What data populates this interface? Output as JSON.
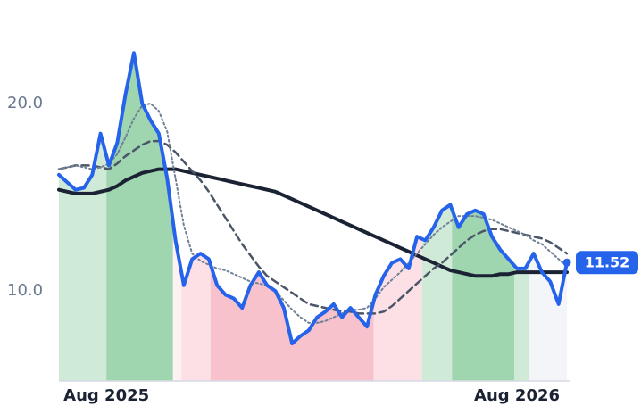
{
  "chart_data": {
    "type": "line",
    "x": [
      0,
      1,
      2,
      3,
      4,
      5,
      6,
      7,
      8,
      9,
      10,
      11,
      12,
      13,
      14,
      15,
      16,
      17,
      18,
      19,
      20,
      21,
      22,
      23,
      24,
      25,
      26,
      27,
      28,
      29,
      30,
      31,
      32,
      33,
      34,
      35,
      36,
      37,
      38,
      39,
      40,
      41,
      42,
      43,
      44,
      45,
      46,
      47,
      48,
      49,
      50,
      51,
      52,
      53,
      54,
      55,
      56,
      57,
      58,
      59,
      60,
      61
    ],
    "xlim": [
      0,
      61
    ],
    "xticks": [
      {
        "value": 5.7,
        "label": "Aug 2025"
      },
      {
        "value": 55,
        "label": "Aug 2026"
      }
    ],
    "ylim": [
      5.2,
      23.6
    ],
    "yticks": [
      {
        "value": 10,
        "label": "10.0"
      },
      {
        "value": 20,
        "label": "20.0"
      }
    ],
    "grid": false,
    "series": [
      {
        "color": "#1a2233",
        "style": "solid",
        "width": 4,
        "values": [
          15.4,
          15.3,
          15.2,
          15.2,
          15.2,
          15.3,
          15.4,
          15.6,
          15.9,
          16.1,
          16.3,
          16.4,
          16.5,
          16.5,
          16.5,
          16.4,
          16.3,
          16.2,
          16.1,
          16.0,
          15.9,
          15.8,
          15.7,
          15.6,
          15.5,
          15.4,
          15.3,
          15.1,
          14.9,
          14.7,
          14.5,
          14.3,
          14.1,
          13.9,
          13.7,
          13.5,
          13.3,
          13.1,
          12.9,
          12.7,
          12.5,
          12.3,
          12.1,
          11.9,
          11.7,
          11.5,
          11.3,
          11.1,
          11.0,
          10.9,
          10.8,
          10.8,
          10.8,
          10.9,
          10.9,
          11.0,
          11.0,
          11.0,
          11.0,
          11.0,
          11.0,
          11.0
        ]
      },
      {
        "color": "#4a5568",
        "style": "dashed",
        "width": 2.5,
        "values": [
          16.5,
          16.6,
          16.7,
          16.7,
          16.7,
          16.6,
          16.5,
          16.8,
          17.2,
          17.5,
          17.8,
          18.0,
          18.0,
          17.8,
          17.4,
          16.9,
          16.4,
          15.9,
          15.3,
          14.6,
          13.9,
          13.2,
          12.5,
          11.9,
          11.3,
          10.8,
          10.5,
          10.2,
          9.9,
          9.6,
          9.3,
          9.2,
          9.1,
          9.0,
          8.9,
          8.9,
          8.8,
          8.8,
          8.8,
          8.9,
          9.2,
          9.6,
          10.0,
          10.4,
          10.8,
          11.2,
          11.5,
          11.9,
          12.3,
          12.7,
          13.0,
          13.2,
          13.3,
          13.3,
          13.2,
          13.1,
          13.0,
          12.9,
          12.8,
          12.6,
          12.3,
          12.0
        ]
      },
      {
        "color": "#718096",
        "style": "dotted",
        "width": 2,
        "values": [
          16.5,
          16.6,
          16.7,
          16.6,
          16.5,
          16.6,
          16.8,
          17.3,
          18.2,
          19.2,
          19.9,
          20.0,
          19.6,
          18.5,
          16.0,
          13.5,
          12.0,
          11.6,
          11.4,
          11.2,
          11.1,
          10.9,
          10.7,
          10.5,
          10.4,
          10.3,
          10.0,
          9.5,
          9.0,
          8.6,
          8.3,
          8.3,
          8.4,
          8.6,
          8.8,
          9.0,
          9.0,
          9.1,
          9.6,
          10.2,
          10.6,
          11.0,
          11.5,
          12.0,
          12.5,
          13.0,
          13.4,
          13.7,
          14.0,
          14.0,
          14.0,
          13.9,
          13.8,
          13.6,
          13.4,
          13.2,
          13.0,
          12.7,
          12.5,
          12.1,
          11.7,
          11.3
        ]
      },
      {
        "color": "#2563eb",
        "style": "solid",
        "width": 4,
        "values": [
          16.2,
          15.8,
          15.4,
          15.5,
          16.2,
          18.4,
          16.7,
          17.9,
          20.5,
          22.7,
          20.0,
          19.1,
          18.4,
          16.0,
          12.7,
          10.3,
          11.7,
          12.0,
          11.7,
          10.3,
          9.8,
          9.6,
          9.1,
          10.3,
          11.0,
          10.3,
          10.0,
          9.1,
          7.2,
          7.6,
          7.9,
          8.6,
          8.9,
          9.3,
          8.6,
          9.1,
          8.6,
          8.1,
          9.8,
          10.8,
          11.5,
          11.7,
          11.2,
          12.9,
          12.7,
          13.4,
          14.3,
          14.6,
          13.4,
          14.1,
          14.3,
          14.1,
          12.9,
          12.2,
          11.7,
          11.2,
          11.2,
          12.0,
          11.0,
          10.5,
          9.3,
          11.52
        ],
        "value_labels": [
          null,
          null,
          null,
          null,
          null,
          null,
          null,
          null,
          null,
          null,
          null,
          null,
          null,
          null,
          null,
          null,
          null,
          null,
          null,
          null,
          null,
          null,
          null,
          null,
          null,
          null,
          null,
          null,
          null,
          null,
          null,
          null,
          null,
          null,
          null,
          null,
          null,
          null,
          null,
          null,
          null,
          null,
          null,
          null,
          null,
          null,
          null,
          null,
          null,
          null,
          null,
          null,
          null,
          null,
          null,
          null,
          null,
          null,
          null,
          null,
          null,
          "11.52"
        ]
      }
    ],
    "regions": [
      {
        "start": 0,
        "end": 5.7,
        "color": "#d0ead8"
      },
      {
        "start": 5.7,
        "end": 13.7,
        "color": "#9fd6b0"
      },
      {
        "start": 13.7,
        "end": 14.7,
        "color": "#fdf1f3"
      },
      {
        "start": 14.7,
        "end": 18.2,
        "color": "#fde0e6"
      },
      {
        "start": 18.2,
        "end": 37.8,
        "color": "#f8c2cd"
      },
      {
        "start": 37.8,
        "end": 43.6,
        "color": "#fde0e6"
      },
      {
        "start": 43.6,
        "end": 47.2,
        "color": "#d0ead8"
      },
      {
        "start": 47.2,
        "end": 54.7,
        "color": "#9fd6b0"
      },
      {
        "start": 54.7,
        "end": 56.5,
        "color": "#d0ead8"
      },
      {
        "start": 56.5,
        "end": 61,
        "color": "#f3f5f9"
      }
    ]
  }
}
